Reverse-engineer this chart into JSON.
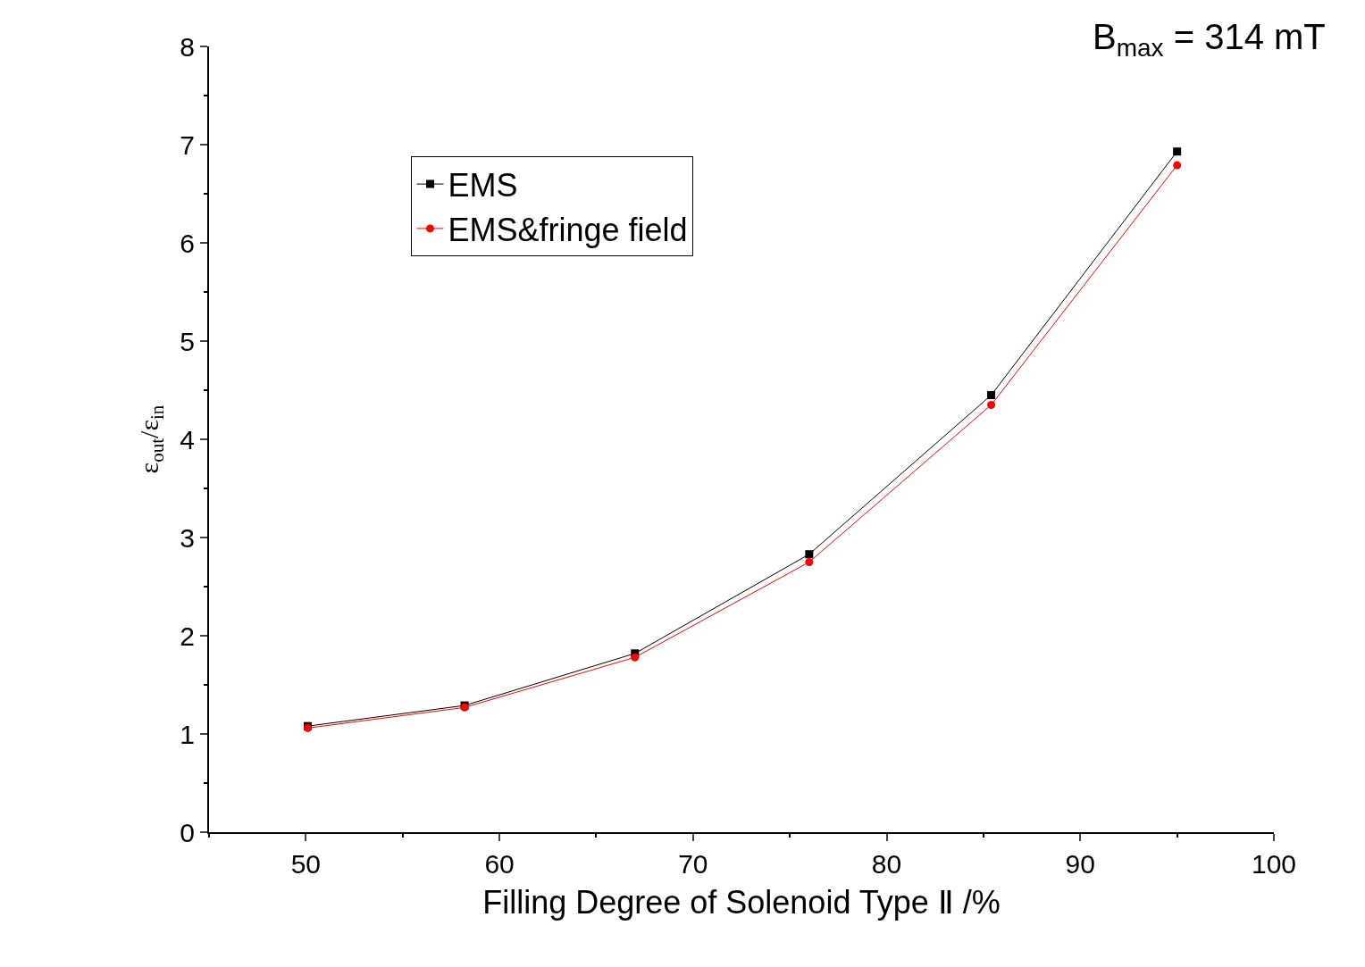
{
  "chart_data": {
    "type": "line",
    "xlabel": "Filling Degree of Solenoid Type Ⅱ /%",
    "ylabel": "ε$_{out}$/ε$_{in}$",
    "x": [
      50.1,
      58.2,
      67.0,
      76.0,
      85.4,
      95.0
    ],
    "series": [
      {
        "name": "EMS",
        "color": "#000000",
        "marker": "square",
        "values": [
          1.08,
          1.29,
          1.82,
          2.83,
          4.45,
          6.93
        ]
      },
      {
        "name": "EMS&fringe field",
        "color": "#ff0000",
        "marker": "circle",
        "values": [
          1.06,
          1.27,
          1.78,
          2.75,
          4.35,
          6.79
        ]
      }
    ],
    "xlim": [
      45,
      100
    ],
    "xticks": [
      50,
      60,
      70,
      80,
      90,
      100
    ],
    "ylim": [
      0,
      8
    ],
    "yticks": [
      0,
      1,
      2,
      3,
      4,
      5,
      6,
      7,
      8
    ],
    "annotations": [
      "B$_{max}$ = 314 mT"
    ],
    "legend": "top left",
    "line_style": "solid"
  }
}
